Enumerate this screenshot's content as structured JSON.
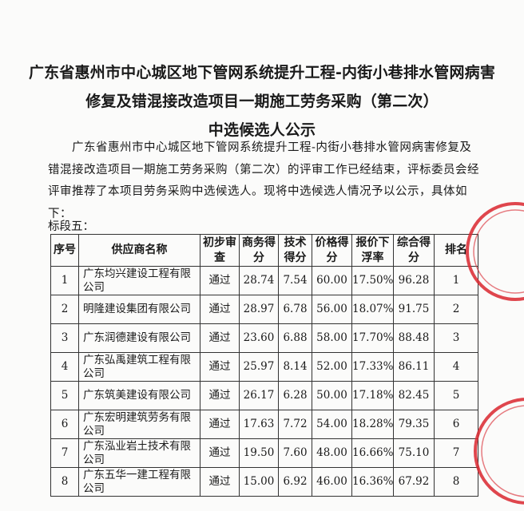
{
  "title": {
    "line1": "广东省惠州市中心城区地下管网系统提升工程-内街小巷排水管网病害",
    "line2": "修复及错混接改造项目一期施工劳务采购（第二次）",
    "line3": "中选候选人公示"
  },
  "body": "广东省惠州市中心城区地下管网系统提升工程-内街小巷排水管网病害修复及错混接改造项目一期施工劳务采购（第二次）的评审工作已经结束，评标委员会经评审推荐了本项目劳务采购中选候选人。现将中选候选人情况予以公示，具体如下：",
  "section_label": "标段五：",
  "table": {
    "headers": [
      "序号",
      "供应商名称",
      "初步审查",
      "商务得分",
      "技术得分",
      "价格得分",
      "报价下浮率",
      "综合得分",
      "排名"
    ],
    "rows": [
      [
        "1",
        "广东均兴建设工程有限公司",
        "通过",
        "28.74",
        "7.54",
        "60.00",
        "17.50%",
        "96.28",
        "1"
      ],
      [
        "2",
        "明隆建设集团有限公司",
        "通过",
        "28.97",
        "6.78",
        "56.00",
        "18.07%",
        "91.75",
        "2"
      ],
      [
        "3",
        "广东润德建设有限公司",
        "通过",
        "23.60",
        "6.88",
        "58.00",
        "17.70%",
        "88.48",
        "3"
      ],
      [
        "4",
        "广东弘禹建筑工程有限公司",
        "通过",
        "25.97",
        "8.14",
        "52.00",
        "17.33%",
        "86.11",
        "4"
      ],
      [
        "5",
        "广东筑美建设有限公司",
        "通过",
        "26.17",
        "6.28",
        "50.00",
        "17.18%",
        "82.45",
        "5"
      ],
      [
        "6",
        "广东宏明建筑劳务有限公司",
        "通过",
        "17.63",
        "7.72",
        "54.00",
        "18.28%",
        "79.35",
        "6"
      ],
      [
        "7",
        "广东泓业岩土技术有限公司",
        "通过",
        "19.50",
        "7.60",
        "48.00",
        "16.66%",
        "75.10",
        "7"
      ],
      [
        "8",
        "广东五华一建工程有限公司",
        "通过",
        "15.00",
        "6.92",
        "46.00",
        "16.36%",
        "67.92",
        "8"
      ]
    ]
  },
  "seal_color": "#d9262e"
}
